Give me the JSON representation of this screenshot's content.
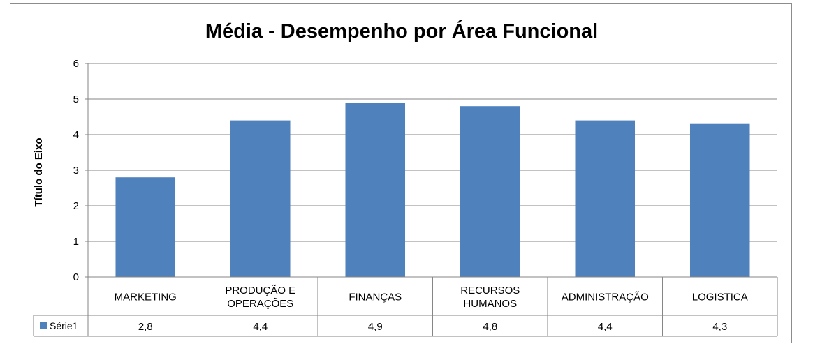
{
  "chart_data": {
    "type": "bar",
    "title": "Média - Desempenho por Área Funcional",
    "xlabel": "",
    "ylabel": "Título do Eixo",
    "ylim": [
      0,
      6
    ],
    "yticks": [
      "0",
      "1",
      "2",
      "3",
      "4",
      "5",
      "6"
    ],
    "categories": [
      [
        "MARKETING"
      ],
      [
        "PRODUÇÃO E",
        "OPERAÇÕES"
      ],
      [
        "FINANÇAS"
      ],
      [
        "RECURSOS",
        "HUMANOS"
      ],
      [
        "ADMINISTRAÇÃO"
      ],
      [
        "LOGISTICA"
      ]
    ],
    "series": [
      {
        "name": "Série1",
        "values": [
          2.8,
          4.4,
          4.9,
          4.8,
          4.4,
          4.3
        ],
        "value_labels": [
          "2,8",
          "4,4",
          "4,9",
          "4,8",
          "4,4",
          "4,3"
        ],
        "color": "#4f81bd"
      }
    ],
    "grid": true,
    "legend": "data-table"
  }
}
